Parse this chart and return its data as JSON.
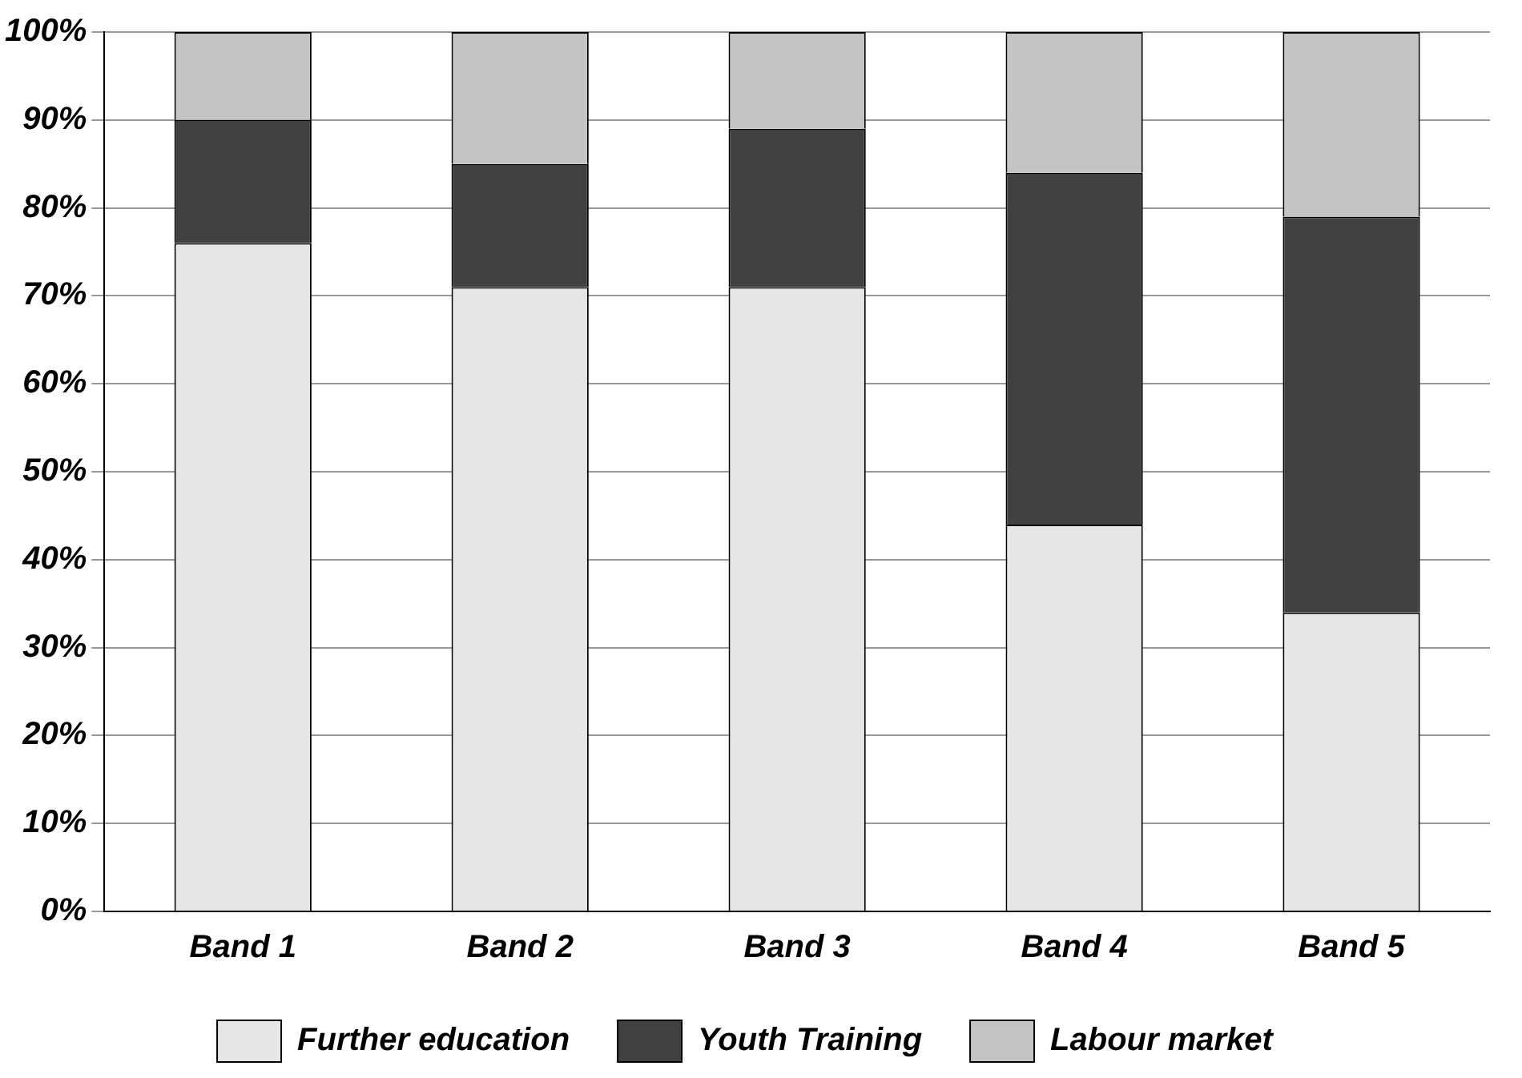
{
  "chart_data": {
    "type": "bar",
    "stacked": true,
    "categories": [
      "Band 1",
      "Band 2",
      "Band 3",
      "Band 4",
      "Band 5"
    ],
    "series": [
      {
        "name": "Further education",
        "color": "#e6e6e6",
        "values": [
          76,
          71,
          71,
          44,
          34
        ]
      },
      {
        "name": "Youth Training",
        "color": "#404040",
        "values": [
          14,
          14,
          18,
          40,
          45
        ]
      },
      {
        "name": "Labour market",
        "color": "#c4c4c4",
        "values": [
          10,
          15,
          11,
          16,
          21
        ]
      }
    ],
    "ylim": [
      0,
      100
    ],
    "yticks": [
      {
        "value": 0,
        "label": "0%"
      },
      {
        "value": 10,
        "label": "10%"
      },
      {
        "value": 20,
        "label": "20%"
      },
      {
        "value": 30,
        "label": "30%"
      },
      {
        "value": 40,
        "label": "40%"
      },
      {
        "value": 50,
        "label": "50%"
      },
      {
        "value": 60,
        "label": "60%"
      },
      {
        "value": 70,
        "label": "70%"
      },
      {
        "value": 80,
        "label": "80%"
      },
      {
        "value": 90,
        "label": "90%"
      },
      {
        "value": 100,
        "label": "100%"
      }
    ],
    "grid": "y",
    "legend": "bottom"
  }
}
